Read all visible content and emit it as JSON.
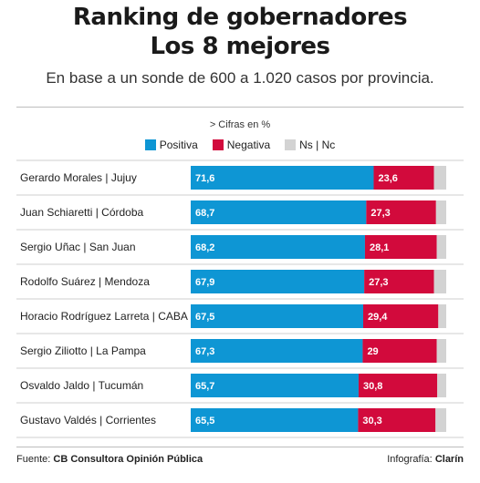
{
  "header": {
    "title_line1": "Ranking de gobernadores",
    "title_line2": "Los 8 mejores",
    "subtitle": "En base a un sonde de 600 a 1.020 casos por provincia.",
    "note": "> Cifras en %"
  },
  "legend": [
    {
      "label": "Positiva",
      "color": "#0e96d4"
    },
    {
      "label": "Negativa",
      "color": "#d20a3c"
    },
    {
      "label": "Ns | Nc",
      "color": "#d3d3d3"
    }
  ],
  "chart_data": {
    "type": "bar",
    "orientation": "horizontal",
    "stacked": true,
    "categories": [
      "Gerardo Morales | Jujuy",
      "Juan Schiaretti | Córdoba",
      "Sergio Uñac | San Juan",
      "Rodolfo Suárez | Mendoza",
      "Horacio Rodríguez Larreta | CABA",
      "Sergio Ziliotto | La Pampa",
      "Osvaldo Jaldo | Tucumán",
      "Gustavo Valdés | Corrientes"
    ],
    "series": [
      {
        "name": "Positiva",
        "color": "#0e96d4",
        "values": [
          71.6,
          68.7,
          68.2,
          67.9,
          67.5,
          67.3,
          65.7,
          65.5
        ],
        "labels": [
          "71,6",
          "68,7",
          "68,2",
          "67,9",
          "67,5",
          "67,3",
          "65,7",
          "65,5"
        ]
      },
      {
        "name": "Negativa",
        "color": "#d20a3c",
        "values": [
          23.6,
          27.3,
          28.1,
          27.3,
          29.4,
          29,
          30.8,
          30.3
        ],
        "labels": [
          "23,6",
          "27,3",
          "28,1",
          "27,3",
          "29,4",
          "29",
          "30,8",
          "30,3"
        ]
      },
      {
        "name": "Ns | Nc",
        "color": "#d3d3d3",
        "values": [
          4.8,
          4.0,
          3.7,
          4.8,
          3.1,
          3.7,
          3.5,
          4.2
        ]
      }
    ],
    "xlim": [
      0,
      100
    ],
    "grid": false
  },
  "footer": {
    "source_label": "Fuente:",
    "source_value": "CB Consultora Opinión Pública",
    "credit_label": "Infografía:",
    "credit_value": "Clarín"
  }
}
